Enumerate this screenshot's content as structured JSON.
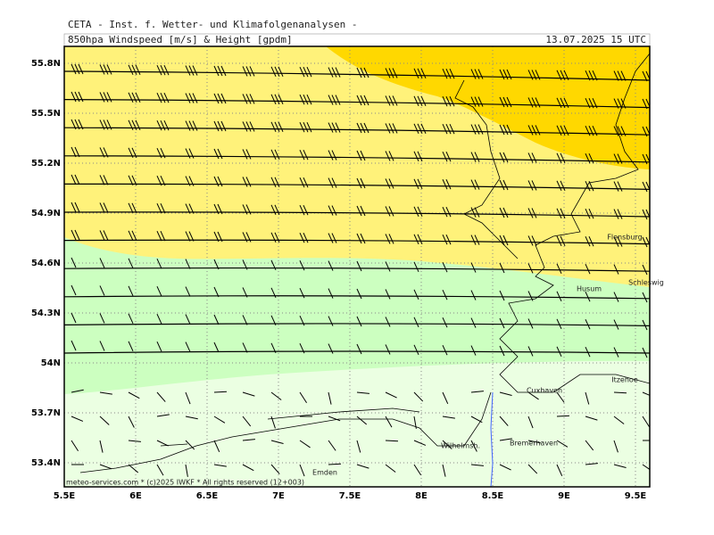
{
  "header": {
    "institute": "CETA - Inst. f. Wetter- und Klimafolgenanalysen -",
    "product": "850hpa Windspeed [m/s] & Height [gpdm]",
    "datetime": "13.07.2025 15 UTC"
  },
  "lat_ticks": [
    "55.8N",
    "55.5N",
    "55.2N",
    "54.9N",
    "54.6N",
    "54.3N",
    "54N",
    "53.7N",
    "53.4N"
  ],
  "lon_ticks": [
    "5.5E",
    "6E",
    "6.5E",
    "7E",
    "7.5E",
    "8E",
    "8.5E",
    "9E",
    "9.5E"
  ],
  "places": [
    "Flensburg",
    "Schleswig",
    "Husum",
    "Itzehoe",
    "Cuxhaven",
    "Wilhelmsh.",
    "Bremerhaven",
    "Emden"
  ],
  "footer": "meteo-services.com * (c)2025 IWKF * All rights reserved (12+003)"
}
